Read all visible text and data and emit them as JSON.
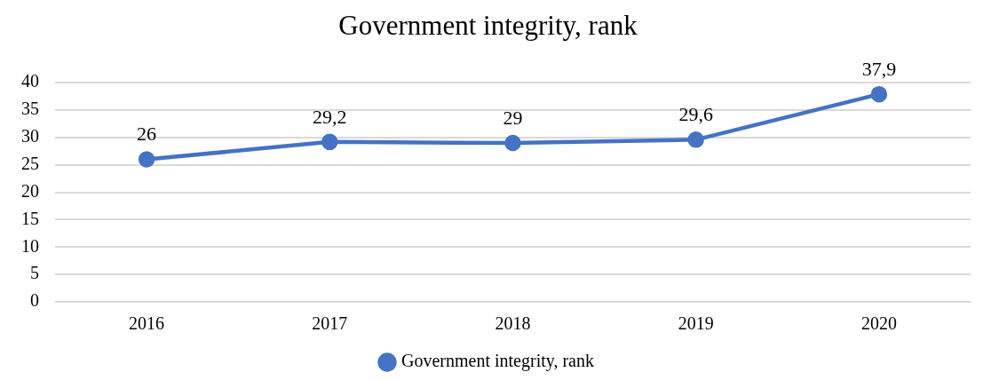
{
  "chart_data": {
    "type": "line",
    "title": "Government integrity, rank",
    "categories": [
      "2016",
      "2017",
      "2018",
      "2019",
      "2020"
    ],
    "series": [
      {
        "name": "Government integrity, rank",
        "color": "#4472c4",
        "values": [
          26,
          29.2,
          29,
          29.6,
          37.9
        ],
        "value_labels": [
          "26",
          "29,2",
          "29",
          "29,6",
          "37,9"
        ]
      }
    ],
    "ylim": [
      0,
      40
    ],
    "yticks": [
      0,
      5,
      10,
      15,
      20,
      25,
      30,
      35,
      40
    ],
    "grid": "y",
    "legend": "bottom",
    "marker": "circle",
    "line_style": "solid"
  }
}
